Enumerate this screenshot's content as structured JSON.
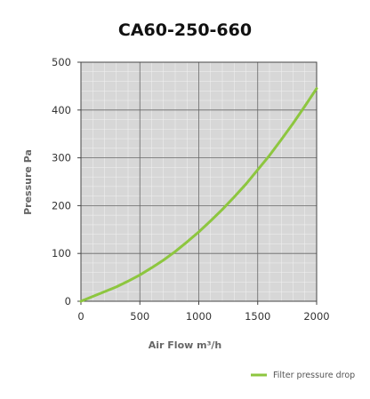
{
  "chart_data": {
    "type": "line",
    "title": "CA60-250-660",
    "xlabel": "Air Flow m³/h",
    "ylabel": "Pressure Pa",
    "xlim": [
      0,
      2000
    ],
    "ylim": [
      0,
      500
    ],
    "x_ticks": [
      0,
      500,
      1000,
      1500,
      2000
    ],
    "y_ticks": [
      0,
      100,
      200,
      300,
      400,
      500
    ],
    "x_tick_labels": [
      "0",
      "500",
      "1000",
      "1500",
      "2000"
    ],
    "y_tick_labels": [
      "0",
      "100",
      "200",
      "300",
      "400",
      "500"
    ],
    "grid": true,
    "legend_position": "bottom-right",
    "series": [
      {
        "name": "Filter pressure drop",
        "color": "#8dc63f",
        "x": [
          0,
          100,
          200,
          300,
          400,
          500,
          600,
          700,
          800,
          900,
          1000,
          1100,
          1200,
          1300,
          1400,
          1500,
          1600,
          1700,
          1800,
          1900,
          2000
        ],
        "y": [
          0,
          10,
          20,
          30,
          42,
          55,
          70,
          86,
          104,
          124,
          145,
          168,
          192,
          218,
          245,
          275,
          305,
          338,
          372,
          408,
          445
        ]
      }
    ]
  }
}
